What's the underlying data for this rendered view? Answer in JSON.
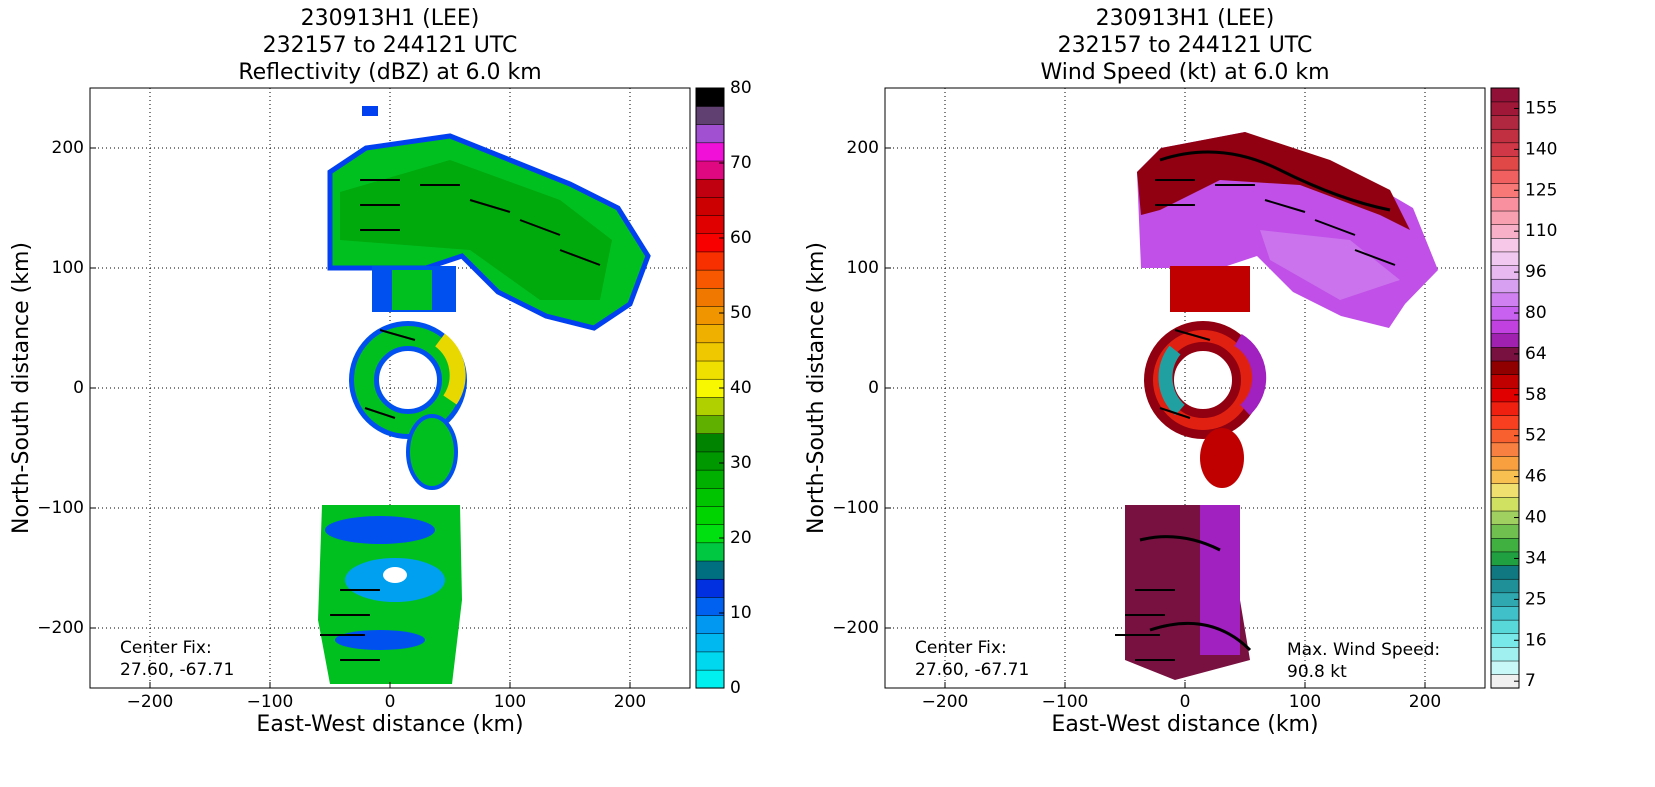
{
  "chart_data": [
    {
      "type": "heatmap",
      "title": [
        "230913H1 (LEE)",
        "232157 to 244121 UTC",
        "Reflectivity (dBZ) at 6.0 km"
      ],
      "xlabel": "East-West distance (km)",
      "ylabel": "North-South distance (km)",
      "xlim": [
        -250,
        250
      ],
      "ylim": [
        -250,
        250
      ],
      "xticks": [
        {
          "value": -200,
          "label": "−200"
        },
        {
          "value": -100,
          "label": "−100"
        },
        0,
        100,
        200
      ],
      "yticks": [
        {
          "value": -200,
          "label": "−200"
        },
        {
          "value": -100,
          "label": "−100"
        },
        0,
        100,
        200
      ],
      "grid": true,
      "notes": [
        {
          "corner": "lower left",
          "lines": [
            "Center Fix:",
            "27.60, -67.71"
          ]
        }
      ],
      "colorbar": {
        "clim": [
          0,
          80
        ],
        "ticks": [
          0,
          10,
          20,
          30,
          40,
          50,
          60,
          70,
          80
        ],
        "colors": [
          "#00f0f0",
          "#00d8f0",
          "#00b8f0",
          "#0098f0",
          "#0060f0",
          "#0030e0",
          "#007080",
          "#00c840",
          "#00e010",
          "#00d400",
          "#00c400",
          "#00b000",
          "#009800",
          "#008400",
          "#60b000",
          "#b0d000",
          "#f8f800",
          "#f0e000",
          "#f0c800",
          "#f0b000",
          "#f09400",
          "#f07800",
          "#f85800",
          "#f83000",
          "#f80000",
          "#e00000",
          "#cc0000",
          "#c00010",
          "#e00880",
          "#f010d8",
          "#a050d0",
          "#604070",
          "#000000"
        ]
      }
    },
    {
      "type": "heatmap",
      "title": [
        "230913H1 (LEE)",
        "232157 to 244121 UTC",
        "Wind Speed (kt) at 6.0 km"
      ],
      "xlabel": "East-West distance (km)",
      "ylabel": "North-South distance (km)",
      "xlim": [
        -250,
        250
      ],
      "ylim": [
        -250,
        250
      ],
      "xticks": [
        {
          "value": -200,
          "label": "−200"
        },
        {
          "value": -100,
          "label": "−100"
        },
        0,
        100,
        200
      ],
      "yticks": [
        {
          "value": -200,
          "label": "−200"
        },
        {
          "value": -100,
          "label": "−100"
        },
        0,
        100,
        200
      ],
      "grid": true,
      "notes": [
        {
          "corner": "lower left",
          "lines": [
            "Center Fix:",
            "27.60, -67.71"
          ]
        },
        {
          "corner": "lower right",
          "lines": [
            "Max. Wind Speed:",
            "90.8 kt"
          ]
        }
      ],
      "colorbar": {
        "ticks": [
          7,
          16,
          25,
          34,
          40,
          46,
          52,
          58,
          64,
          80,
          96,
          110,
          125,
          140,
          155
        ],
        "colors": [
          "#f0f0f0",
          "#c8f8f8",
          "#a0f0f0",
          "#78e8e8",
          "#58d8d8",
          "#40c0c8",
          "#30a8b0",
          "#209098",
          "#107880",
          "#20a040",
          "#40b040",
          "#70c050",
          "#a0d060",
          "#d0e060",
          "#f0e070",
          "#f8c050",
          "#f8a040",
          "#f88040",
          "#f86030",
          "#f84020",
          "#f02010",
          "#e00000",
          "#c00000",
          "#900000",
          "#781040",
          "#a020b0",
          "#c040e0",
          "#c860f0",
          "#d080f0",
          "#d8a0f0",
          "#e8b8f0",
          "#f0c8f0",
          "#f8c8e8",
          "#f8b0c8",
          "#f8a0b0",
          "#f890a0",
          "#f87878",
          "#f06060",
          "#e04848",
          "#d03848",
          "#c03040",
          "#b02840",
          "#a01838",
          "#901038"
        ]
      }
    }
  ]
}
